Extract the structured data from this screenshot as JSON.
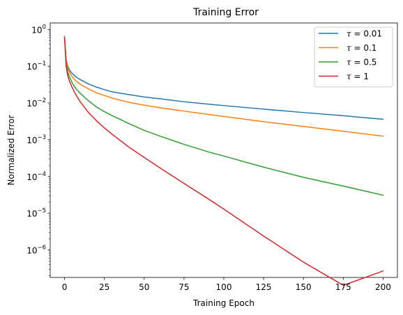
{
  "chart_data": {
    "type": "line",
    "title": "Training Error",
    "xlabel": "Training Epoch",
    "ylabel": "Normalized Error",
    "xlim": [
      -9,
      209
    ],
    "ylim": [
      1.8e-07,
      1.5
    ],
    "yscale": "log",
    "grid": false,
    "legend_position": "upper right",
    "x_ticks": [
      0,
      25,
      50,
      75,
      100,
      125,
      150,
      175,
      200
    ],
    "x_tick_labels": [
      "0",
      "25",
      "50",
      "75",
      "100",
      "125",
      "150",
      "175",
      "200"
    ],
    "y_ticks": [
      1e-06,
      1e-05,
      0.0001,
      0.001,
      0.01,
      0.1,
      1
    ],
    "y_tick_labels": [
      {
        "base": "10",
        "exp": "−6"
      },
      {
        "base": "10",
        "exp": "−5"
      },
      {
        "base": "10",
        "exp": "−4"
      },
      {
        "base": "10",
        "exp": "−3"
      },
      {
        "base": "10",
        "exp": "−2"
      },
      {
        "base": "10",
        "exp": "−1"
      },
      {
        "base": "10",
        "exp": "0"
      }
    ],
    "series": [
      {
        "name": "τ = 0.01",
        "symbol": "τ",
        "value_text": " = 0.01",
        "color": "#1f77b4",
        "x": [
          0,
          1,
          2,
          3,
          5,
          7,
          10,
          15,
          20,
          25,
          30,
          40,
          50,
          60,
          75,
          90,
          100,
          125,
          150,
          175,
          200
        ],
        "y": [
          0.65,
          0.15,
          0.1,
          0.08,
          0.062,
          0.052,
          0.043,
          0.033,
          0.027,
          0.023,
          0.02,
          0.017,
          0.0145,
          0.013,
          0.0108,
          0.0093,
          0.0085,
          0.0068,
          0.0055,
          0.0045,
          0.0036
        ]
      },
      {
        "name": "τ = 0.1",
        "symbol": "τ",
        "value_text": " = 0.1",
        "color": "#ff7f0e",
        "x": [
          0,
          1,
          2,
          3,
          5,
          7,
          10,
          15,
          20,
          25,
          30,
          40,
          50,
          60,
          75,
          90,
          100,
          125,
          150,
          175,
          200
        ],
        "y": [
          0.63,
          0.14,
          0.09,
          0.07,
          0.05,
          0.04,
          0.032,
          0.024,
          0.019,
          0.016,
          0.0135,
          0.0105,
          0.0087,
          0.0074,
          0.006,
          0.0049,
          0.0043,
          0.0031,
          0.0023,
          0.0017,
          0.00125
        ]
      },
      {
        "name": "τ = 0.5",
        "symbol": "τ",
        "value_text": " = 0.5",
        "color": "#2ca02c",
        "x": [
          0,
          1,
          2,
          3,
          5,
          7,
          10,
          15,
          20,
          25,
          30,
          40,
          50,
          60,
          75,
          90,
          100,
          125,
          150,
          175,
          200
        ],
        "y": [
          0.6,
          0.12,
          0.07,
          0.052,
          0.034,
          0.025,
          0.018,
          0.0115,
          0.0078,
          0.0058,
          0.0045,
          0.0028,
          0.0018,
          0.00125,
          0.00075,
          0.00047,
          0.00036,
          0.00018,
          9.5e-05,
          5.5e-05,
          3.1e-05
        ]
      },
      {
        "name": "τ = 1",
        "symbol": "τ",
        "value_text": " = 1",
        "color": "#d62728",
        "x": [
          0,
          1,
          2,
          3,
          5,
          7,
          10,
          15,
          20,
          25,
          30,
          40,
          50,
          60,
          75,
          90,
          100,
          125,
          150,
          175,
          200
        ],
        "y": [
          0.58,
          0.1,
          0.055,
          0.04,
          0.025,
          0.017,
          0.0105,
          0.0055,
          0.0033,
          0.0021,
          0.0014,
          0.00065,
          0.00033,
          0.00017,
          6.5e-05,
          2.5e-05,
          1.3e-05,
          2.4e-06,
          4.7e-07,
          1.1e-07,
          2.7e-07
        ]
      }
    ]
  }
}
